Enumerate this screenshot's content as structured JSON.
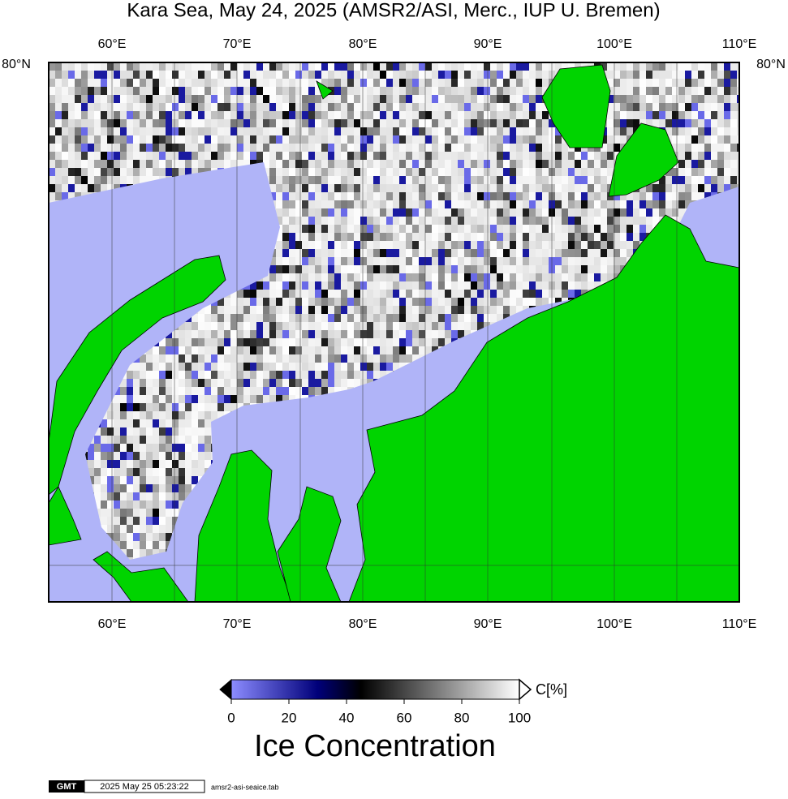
{
  "title": "Kara Sea, May 24, 2025 (AMSR2/ASI, Merc., IUP U. Bremen)",
  "map": {
    "lon_labels_top": [
      "60°E",
      "70°E",
      "80°E",
      "90°E",
      "100°E",
      "110°E"
    ],
    "lon_labels_bottom": [
      "60°E",
      "70°E",
      "80°E",
      "90°E",
      "100°E",
      "110°E"
    ],
    "lat_label_left": "80°N",
    "lat_label_right": "80°N"
  },
  "colorbar": {
    "ticks": [
      0,
      20,
      40,
      60,
      80,
      100
    ],
    "unit": "C[%]",
    "label": "Ice Concentration"
  },
  "footer": {
    "logo": "GMT",
    "timestamp": "2025 May 25 05:23:22",
    "file": "amsr2-asi-seaice.tab"
  }
}
